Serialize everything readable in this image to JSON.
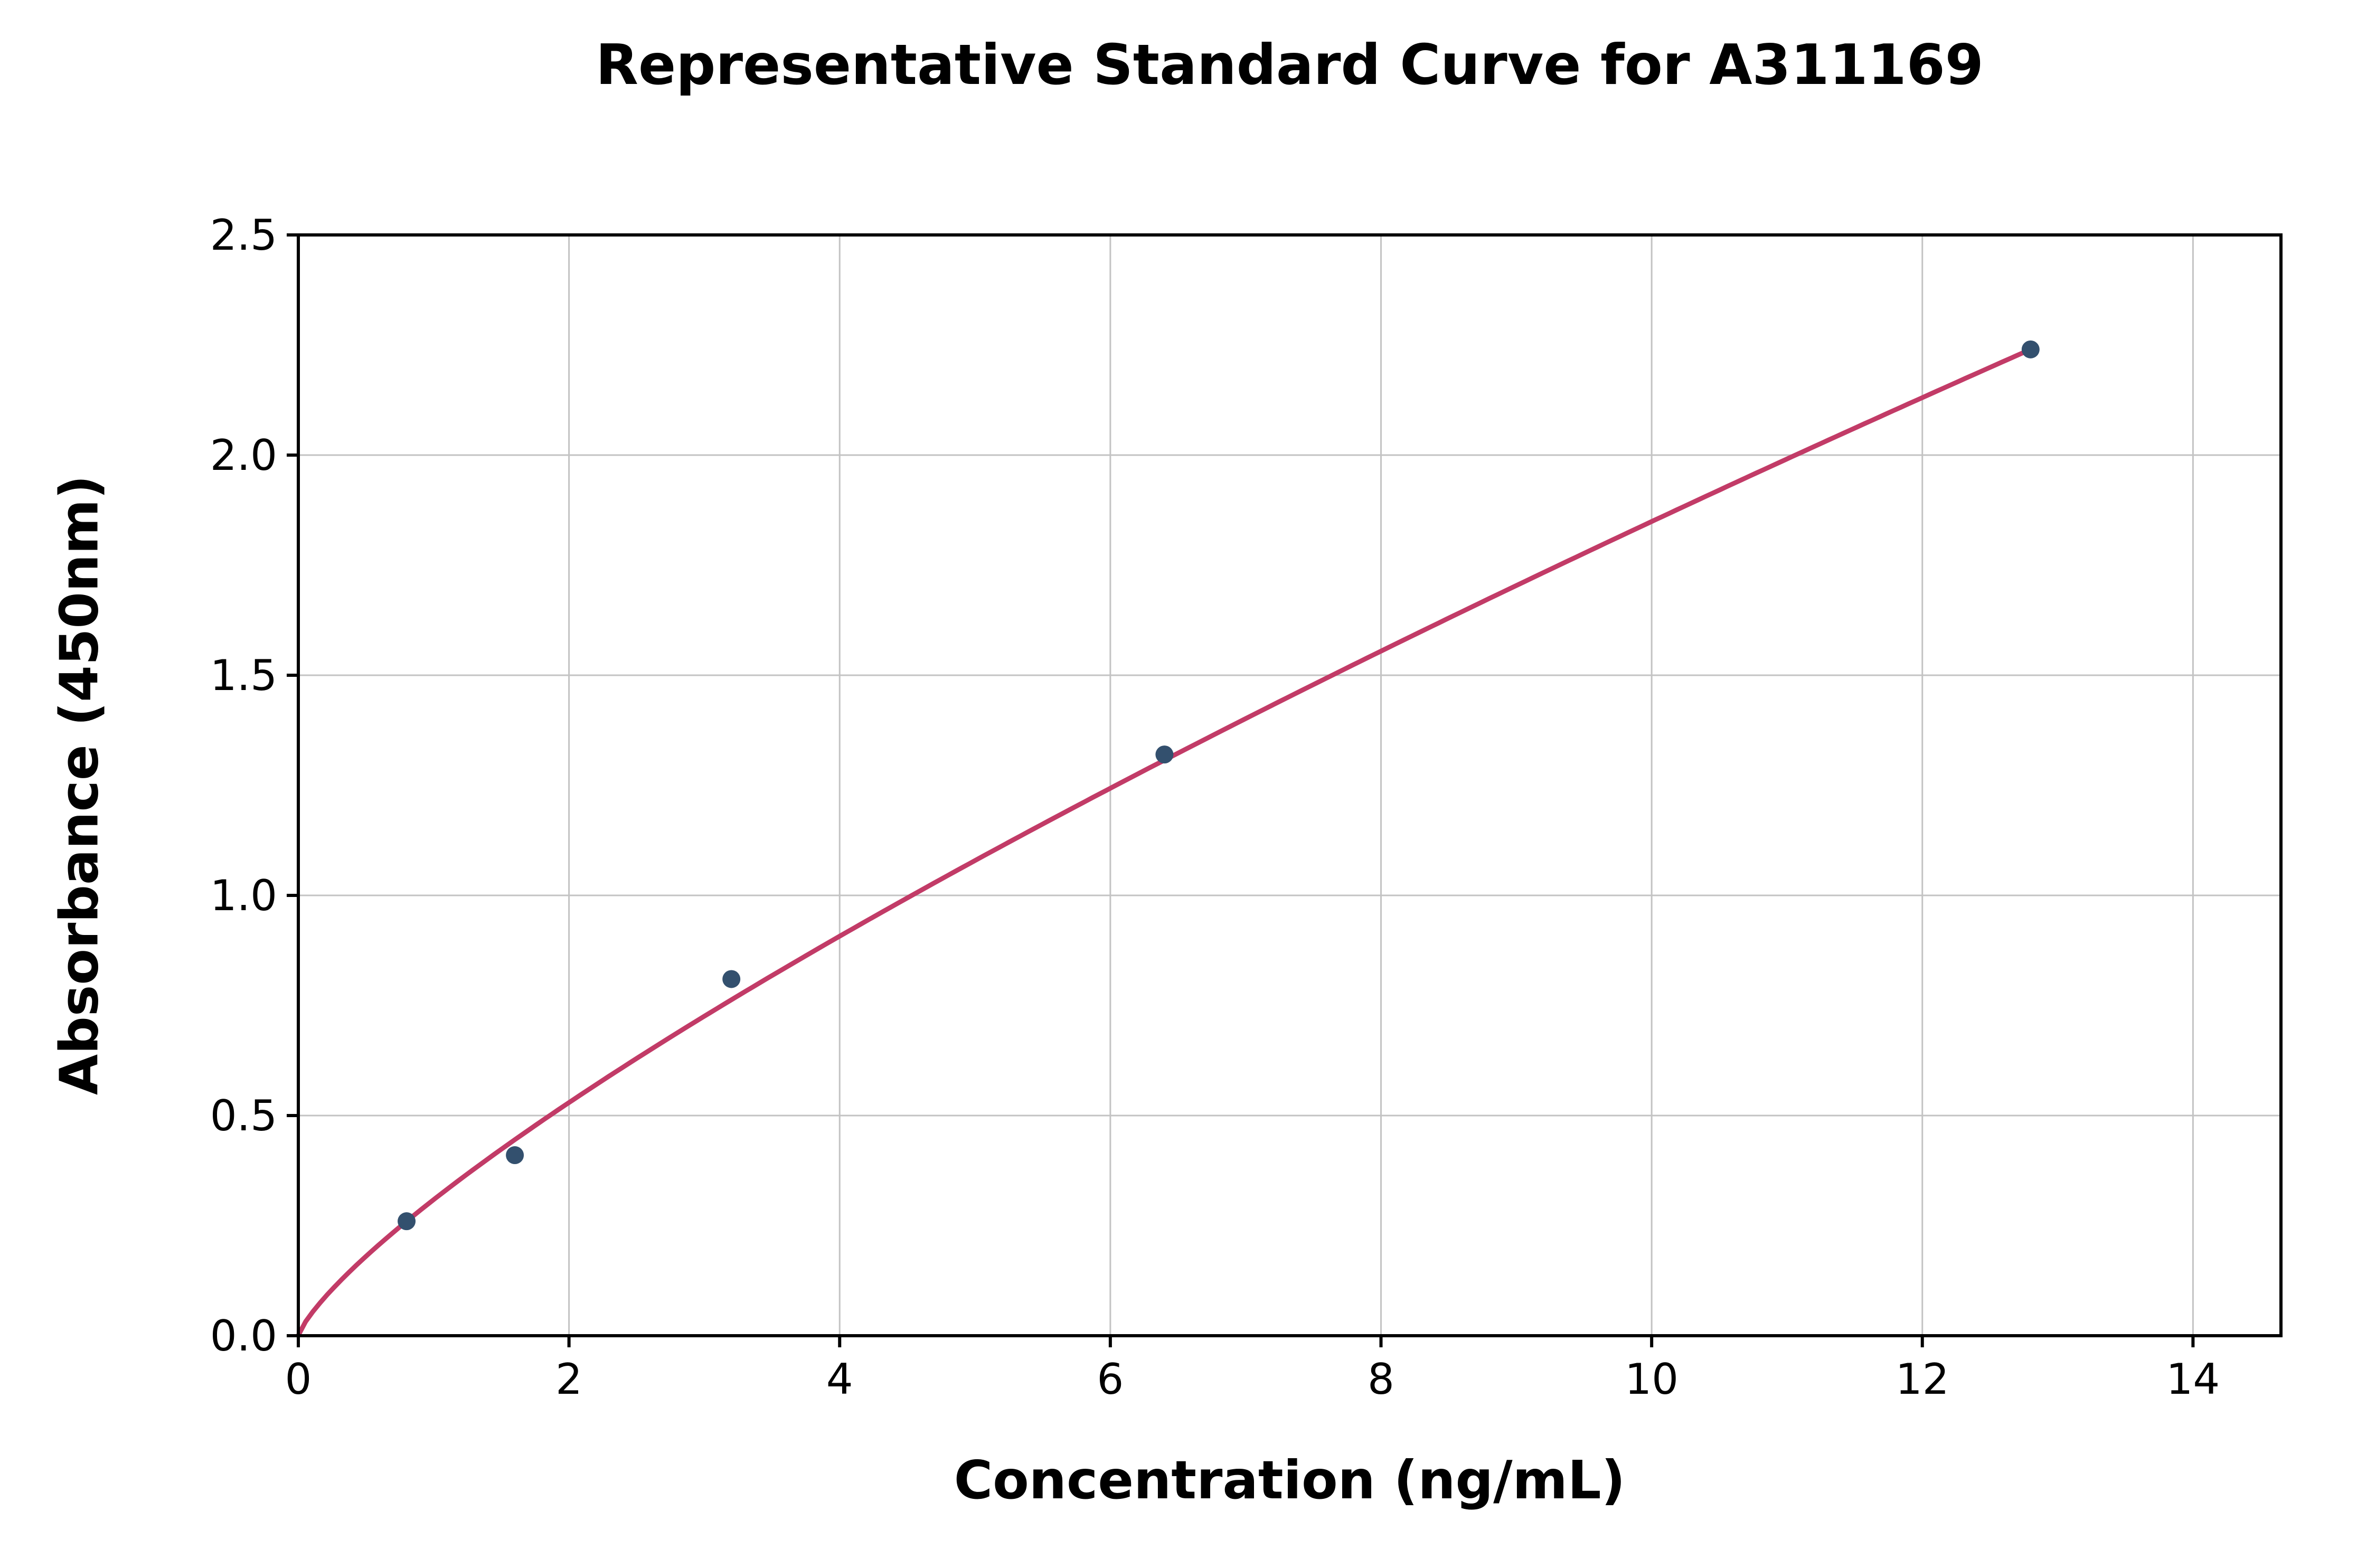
{
  "chart_data": {
    "type": "scatter",
    "title": "Representative Standard Curve for A311169",
    "xlabel": "Concentration (ng/mL)",
    "ylabel": "Absorbance (450nm)",
    "xlim": [
      0,
      14.65
    ],
    "ylim": [
      0,
      2.5
    ],
    "xticks": [
      {
        "v": 0,
        "label": "0"
      },
      {
        "v": 2,
        "label": "2"
      },
      {
        "v": 4,
        "label": "4"
      },
      {
        "v": 6,
        "label": "6"
      },
      {
        "v": 8,
        "label": "8"
      },
      {
        "v": 10,
        "label": "10"
      },
      {
        "v": 12,
        "label": "12"
      },
      {
        "v": 14,
        "label": "14"
      }
    ],
    "yticks": [
      {
        "v": 0.0,
        "label": "0.0"
      },
      {
        "v": 0.5,
        "label": "0.5"
      },
      {
        "v": 1.0,
        "label": "1.0"
      },
      {
        "v": 1.5,
        "label": "1.5"
      },
      {
        "v": 2.0,
        "label": "2.0"
      },
      {
        "v": 2.5,
        "label": "2.5"
      }
    ],
    "grid": true,
    "legend": "none",
    "points": [
      {
        "x": 0.8,
        "y": 0.26
      },
      {
        "x": 1.6,
        "y": 0.41
      },
      {
        "x": 3.2,
        "y": 0.81
      },
      {
        "x": 6.4,
        "y": 1.32
      },
      {
        "x": 12.8,
        "y": 2.24
      }
    ],
    "fit_curve": {
      "type": "power",
      "a": 0.309,
      "b": 0.777,
      "x_start": 0.001,
      "x_end": 12.8
    },
    "colors": {
      "curve": "#c23b67",
      "point": "#33506e",
      "grid": "#c3c3c3",
      "axis": "#000000",
      "background": "#ffffff"
    }
  }
}
